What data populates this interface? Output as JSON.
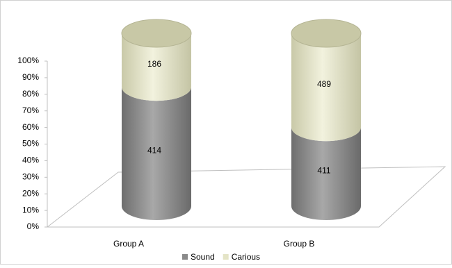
{
  "chart_data": {
    "type": "bar",
    "stacked": "percent",
    "shape": "cylinder",
    "categories": [
      "Group A",
      "Group B"
    ],
    "series": [
      {
        "name": "Sound",
        "color": "#8a8a8a",
        "values": [
          414,
          411
        ]
      },
      {
        "name": "Carious",
        "color": "#e4e4c6",
        "values": [
          186,
          489
        ]
      }
    ],
    "ylim": [
      0,
      100
    ],
    "yticks": [
      {
        "value": 0,
        "label": "0%"
      },
      {
        "value": 10,
        "label": "10%"
      },
      {
        "value": 20,
        "label": "20%"
      },
      {
        "value": 30,
        "label": "30%"
      },
      {
        "value": 40,
        "label": "40%"
      },
      {
        "value": 50,
        "label": "50%"
      },
      {
        "value": 60,
        "label": "60%"
      },
      {
        "value": 70,
        "label": "70%"
      },
      {
        "value": 80,
        "label": "80%"
      },
      {
        "value": 90,
        "label": "90%"
      },
      {
        "value": 100,
        "label": "100%"
      }
    ],
    "legend": "bottom"
  }
}
